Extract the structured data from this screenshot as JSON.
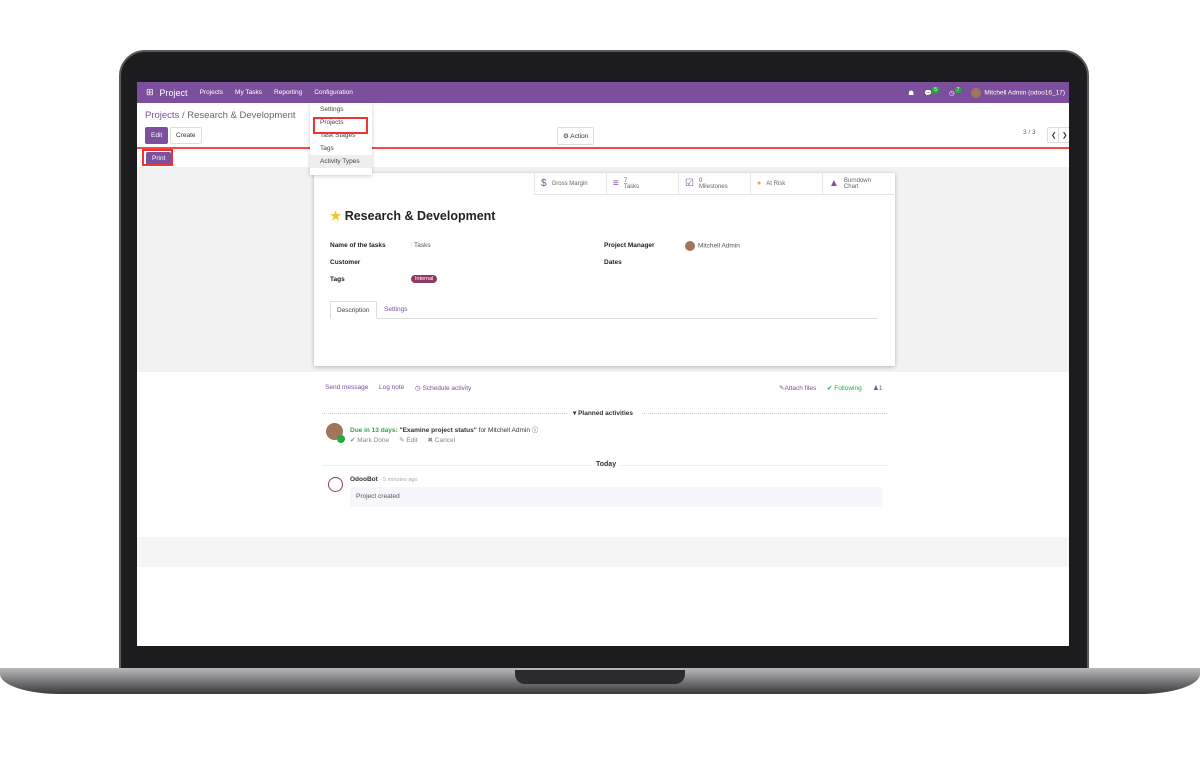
{
  "nav": {
    "app": "Project",
    "menu": [
      "Projects",
      "My Tasks",
      "Reporting",
      "Configuration"
    ],
    "chat_badge": "5",
    "activity_badge": "7",
    "user": "Mitchell Admin (odoo16_17)"
  },
  "dropdown": [
    "Settings",
    "Projects",
    "Task Stages",
    "Tags",
    "Activity Types"
  ],
  "breadcrumb": {
    "parent": "Projects",
    "current": "Research & Development"
  },
  "buttons": {
    "edit": "Edit",
    "create": "Create",
    "action": "Action",
    "print": "Print"
  },
  "pager": "3 / 3",
  "smart_buttons": [
    {
      "icon": "$",
      "label": "Gross Margin"
    },
    {
      "icon": "≡",
      "count": "7",
      "label": "Tasks"
    },
    {
      "icon": "☑",
      "count": "0",
      "label": "Milestones"
    },
    {
      "icon": "●",
      "label": "At Risk"
    },
    {
      "icon": "▲",
      "label": "Burndown",
      "label2": "Chart"
    }
  ],
  "record": {
    "title": "Research & Development",
    "fields": {
      "tasks_label": "Name of the tasks",
      "tasks_value": "Tasks",
      "customer_label": "Customer",
      "tags_label": "Tags",
      "tag": "Internal",
      "manager_label": "Project Manager",
      "manager_value": "Mitchell Admin",
      "dates_label": "Dates"
    },
    "tabs": [
      "Description",
      "Settings"
    ]
  },
  "chatter": {
    "send": "Send message",
    "log": "Log note",
    "schedule": "Schedule activity",
    "attach": "Attach files",
    "following": "Following",
    "followers": "1",
    "planned": "Planned activities",
    "due": "Due in 13 days:",
    "activity": "\"Examine project status\"",
    "for": "for Mitchell Admin",
    "mark_done": "Mark Done",
    "edit": "Edit",
    "cancel": "Cancel",
    "today": "Today",
    "author": "OdooBot",
    "time": "- 5 minutes ago",
    "message": "Project created"
  },
  "colors": {
    "brand": "#7c4f9c",
    "highlight": "#e33333",
    "success": "#28a745"
  }
}
